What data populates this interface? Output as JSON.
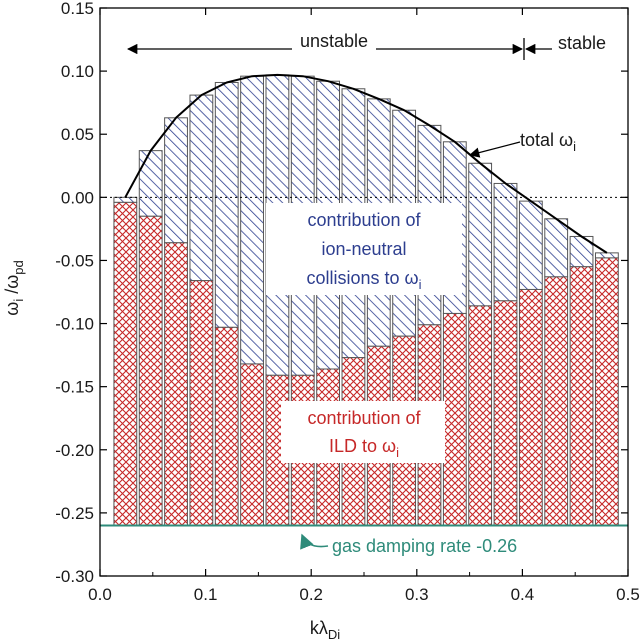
{
  "chart_data": {
    "type": "bar",
    "title": "",
    "xlabel": "kλ",
    "xlabel_sub": "Di",
    "ylabel_parts": [
      "ω",
      "i",
      " /ω",
      "pd"
    ],
    "xlim": [
      0.0,
      0.5
    ],
    "ylim": [
      -0.3,
      0.15
    ],
    "x_ticks": [
      "0.0",
      "0.1",
      "0.2",
      "0.3",
      "0.4",
      "0.5"
    ],
    "y_ticks": [
      "0.15",
      "0.10",
      "0.05",
      "0.00",
      "-0.05",
      "-0.10",
      "-0.15",
      "-0.20",
      "-0.25",
      "-0.30"
    ],
    "x": [
      0.024,
      0.048,
      0.072,
      0.096,
      0.12,
      0.144,
      0.168,
      0.192,
      0.216,
      0.24,
      0.264,
      0.288,
      0.312,
      0.336,
      0.36,
      0.384,
      0.408,
      0.432,
      0.456,
      0.48
    ],
    "total_omega_i": [
      0.0,
      0.037,
      0.063,
      0.081,
      0.091,
      0.096,
      0.097,
      0.096,
      0.092,
      0.086,
      0.078,
      0.069,
      0.057,
      0.044,
      0.027,
      0.011,
      -0.003,
      -0.017,
      -0.031,
      -0.044
    ],
    "ild_contribution": [
      -0.004,
      -0.015,
      -0.036,
      -0.066,
      -0.103,
      -0.132,
      -0.141,
      -0.141,
      -0.136,
      -0.127,
      -0.118,
      -0.11,
      -0.101,
      -0.092,
      -0.086,
      -0.082,
      -0.073,
      -0.063,
      -0.055,
      -0.048
    ],
    "gas_damping_rate": -0.26,
    "stability_boundary_x": 0.4,
    "colors": {
      "ion_neutral": "#2d3e8f",
      "ild": "#c62828",
      "gas_damping": "#2e8b7a",
      "curve": "#000000"
    },
    "annotations": {
      "unstable": "unstable",
      "stable": "stable",
      "total_label": "total ω",
      "total_sub": "i",
      "ion_neutral_lines": [
        "contribution of",
        "ion-neutral",
        "collisions to ω"
      ],
      "ion_neutral_sub": "i",
      "ild_lines": [
        "contribution of",
        "ILD to ω"
      ],
      "ild_sub": "i",
      "gas_damping_label": "gas damping rate -0.26"
    }
  }
}
